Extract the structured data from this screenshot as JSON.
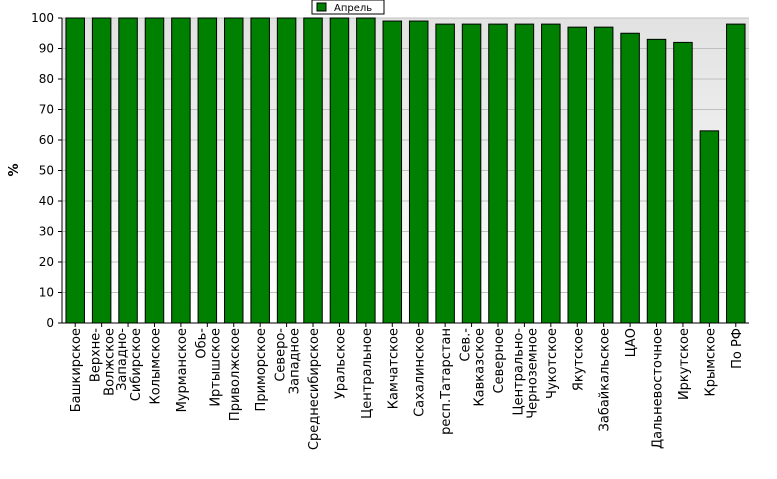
{
  "chart_data": {
    "type": "bar",
    "title": "",
    "xlabel": "",
    "ylabel": "%",
    "ylim": [
      0,
      100
    ],
    "yticks": [
      0,
      10,
      20,
      30,
      40,
      50,
      60,
      70,
      80,
      90,
      100
    ],
    "grid": true,
    "legend_position": "top-center",
    "categories": [
      "Башкирское",
      "Верхне-Волжское",
      "Западно-Сибирское",
      "Колымское",
      "Мурманское",
      "Обь-Иртышское",
      "Приволжское",
      "Приморское",
      "Северо-Западное",
      "Среднесибирское",
      "Уральское",
      "Центральное",
      "Камчатское",
      "Сахалинское",
      "респ.Татарстан",
      "Сев.-Кавказское",
      "Северное",
      "Центрально-Черноземное",
      "Чукотское",
      "Якутское",
      "Забайкальское",
      "ЦАО",
      "Дальневосточное",
      "Иркутское",
      "Крымское",
      "По РФ"
    ],
    "label_lines": [
      [
        "Башкирское"
      ],
      [
        "Верхне-",
        "Волжское"
      ],
      [
        "Западно-",
        "Сибирское"
      ],
      [
        "Колымское"
      ],
      [
        "Мурманское"
      ],
      [
        "Обь-",
        "Иртышское"
      ],
      [
        "Приволжское"
      ],
      [
        "Приморское"
      ],
      [
        "Северо-",
        "Западное"
      ],
      [
        "Среднесибирское"
      ],
      [
        "Уральское"
      ],
      [
        "Центральное"
      ],
      [
        "Камчатское"
      ],
      [
        "Сахалинское"
      ],
      [
        "респ.Татарстан"
      ],
      [
        "Сев.-",
        "Кавказское"
      ],
      [
        "Северное"
      ],
      [
        "Центрально-",
        "Черноземное"
      ],
      [
        "Чукотское"
      ],
      [
        "Якутское"
      ],
      [
        "Забайкальское"
      ],
      [
        "ЦАО"
      ],
      [
        "Дальневосточное"
      ],
      [
        "Иркутское"
      ],
      [
        "Крымское"
      ],
      [
        "По РФ"
      ]
    ],
    "series": [
      {
        "name": "Апрель",
        "color": "#008000",
        "values": [
          100,
          100,
          100,
          100,
          100,
          100,
          100,
          100,
          100,
          100,
          100,
          100,
          99,
          99,
          98,
          98,
          98,
          98,
          98,
          97,
          97,
          95,
          93,
          92,
          63,
          98
        ]
      }
    ]
  },
  "colors": {
    "bar_fill": "#008000",
    "bar_stroke": "#000000",
    "plot_bg_top": "#e4e4e4",
    "plot_bg_bottom": "#ffffff",
    "grid": "#c0c0c0"
  }
}
